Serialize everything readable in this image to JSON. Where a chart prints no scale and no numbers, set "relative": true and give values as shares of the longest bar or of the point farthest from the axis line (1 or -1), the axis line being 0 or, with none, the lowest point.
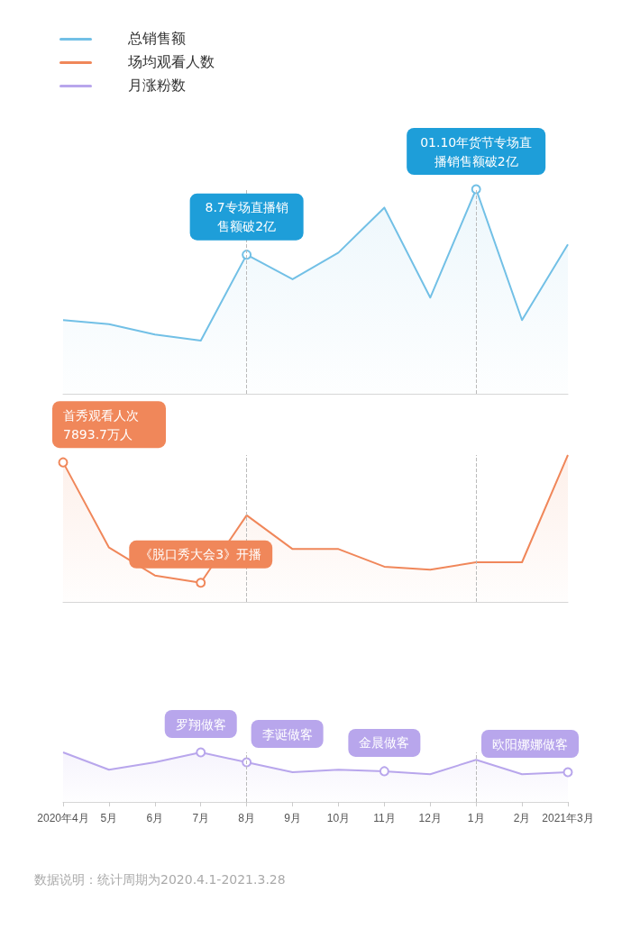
{
  "chart_data": [
    {
      "type": "area",
      "relative": true,
      "tick_labels": false,
      "legend": "top left",
      "categories": [
        "2020年4月",
        "5月",
        "6月",
        "7月",
        "8月",
        "9月",
        "10月",
        "11月",
        "12月",
        "1月",
        "2月",
        "2021年3月"
      ],
      "series": [
        {
          "name": "总销售额",
          "color": "#72c0e6",
          "values": [
            0.36,
            0.34,
            0.29,
            0.26,
            0.68,
            0.56,
            0.69,
            0.91,
            0.47,
            1,
            0.36,
            0.73
          ]
        }
      ],
      "ref_lines": [
        {
          "axis": "x",
          "value": "8月",
          "line_style": "dashed"
        },
        {
          "axis": "x",
          "value": "1月",
          "line_style": "dashed"
        }
      ],
      "annotations": [
        {
          "text": "8.7专场直播销售额破2亿",
          "x": "8月",
          "y": 0.68
        },
        {
          "text": "01.10年货节专场直播销售额破2亿",
          "x": "1月",
          "y": 1
        }
      ]
    },
    {
      "type": "area",
      "relative": true,
      "tick_labels": false,
      "legend": "top left",
      "categories": [
        "2020年4月",
        "5月",
        "6月",
        "7月",
        "8月",
        "9月",
        "10月",
        "11月",
        "12月",
        "1月",
        "2月",
        "2021年3月"
      ],
      "series": [
        {
          "name": "场均观看人数",
          "color": "#f0875a",
          "values": [
            0.95,
            0.37,
            0.18,
            0.13,
            0.59,
            0.36,
            0.36,
            0.24,
            0.22,
            0.27,
            0.27,
            1
          ]
        }
      ],
      "ref_lines": [
        {
          "axis": "x",
          "value": "8月",
          "line_style": "dashed"
        },
        {
          "axis": "x",
          "value": "1月",
          "line_style": "dashed"
        }
      ],
      "annotations": [
        {
          "text": "首秀观看人次7893.7万人",
          "x": "2020年4月",
          "y": 0.95
        },
        {
          "text": "《脱口秀大会3》开播",
          "x": "7月",
          "y": 0.13
        }
      ]
    },
    {
      "type": "area",
      "relative": true,
      "tick_labels": "x",
      "legend": "top left",
      "categories": [
        "2020年4月",
        "5月",
        "6月",
        "7月",
        "8月",
        "9月",
        "10月",
        "11月",
        "12月",
        "1月",
        "2月",
        "2021年3月"
      ],
      "series": [
        {
          "name": "月涨粉数",
          "color": "#b8a6ec",
          "values": [
            1,
            0.65,
            0.8,
            1,
            0.8,
            0.6,
            0.65,
            0.62,
            0.56,
            0.85,
            0.56,
            0.6
          ]
        }
      ],
      "ref_lines": [
        {
          "axis": "x",
          "value": "8月",
          "line_style": "dashed"
        },
        {
          "axis": "x",
          "value": "1月",
          "line_style": "dashed"
        }
      ],
      "annotations": [
        {
          "text": "罗翔做客",
          "x": "7月",
          "y": 1
        },
        {
          "text": "李诞做客",
          "x": "8月",
          "y": 0.8
        },
        {
          "text": "金晨做客",
          "x": "11月",
          "y": 0.62
        },
        {
          "text": "欧阳娜娜做客",
          "x": "2021年3月",
          "y": 0.6
        },
        "数据说明：统计周期为2020.4.1-2021.3.28"
      ]
    }
  ]
}
